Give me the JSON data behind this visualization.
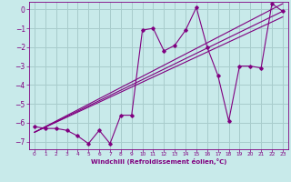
{
  "xlabel": "Windchill (Refroidissement éolien,°C)",
  "background_color": "#c8eaea",
  "grid_color": "#a8cccc",
  "line_color": "#800080",
  "text_color": "#800080",
  "xlim": [
    -0.5,
    23.5
  ],
  "ylim": [
    -7.4,
    0.4
  ],
  "yticks": [
    0,
    -1,
    -2,
    -3,
    -4,
    -5,
    -6,
    -7
  ],
  "xticks": [
    0,
    1,
    2,
    3,
    4,
    5,
    6,
    7,
    8,
    9,
    10,
    11,
    12,
    13,
    14,
    15,
    16,
    17,
    18,
    19,
    20,
    21,
    22,
    23
  ],
  "scatter_x": [
    0,
    1,
    2,
    3,
    4,
    5,
    6,
    7,
    8,
    9,
    10,
    11,
    12,
    13,
    14,
    15,
    16,
    17,
    18,
    19,
    20,
    21,
    22,
    23
  ],
  "scatter_y": [
    -6.2,
    -6.3,
    -6.3,
    -6.4,
    -6.7,
    -7.1,
    -6.4,
    -7.1,
    -5.6,
    -5.6,
    -1.1,
    -1.0,
    -2.2,
    -1.9,
    -1.1,
    0.1,
    -2.0,
    -3.5,
    -5.9,
    -3.0,
    -3.0,
    -3.1,
    0.3,
    -0.1
  ],
  "line1_x": [
    0,
    23
  ],
  "line1_y": [
    -6.5,
    0.3
  ],
  "line2_x": [
    0,
    23
  ],
  "line2_y": [
    -6.5,
    -0.1
  ],
  "line3_x": [
    0,
    23
  ],
  "line3_y": [
    -6.5,
    -0.4
  ]
}
